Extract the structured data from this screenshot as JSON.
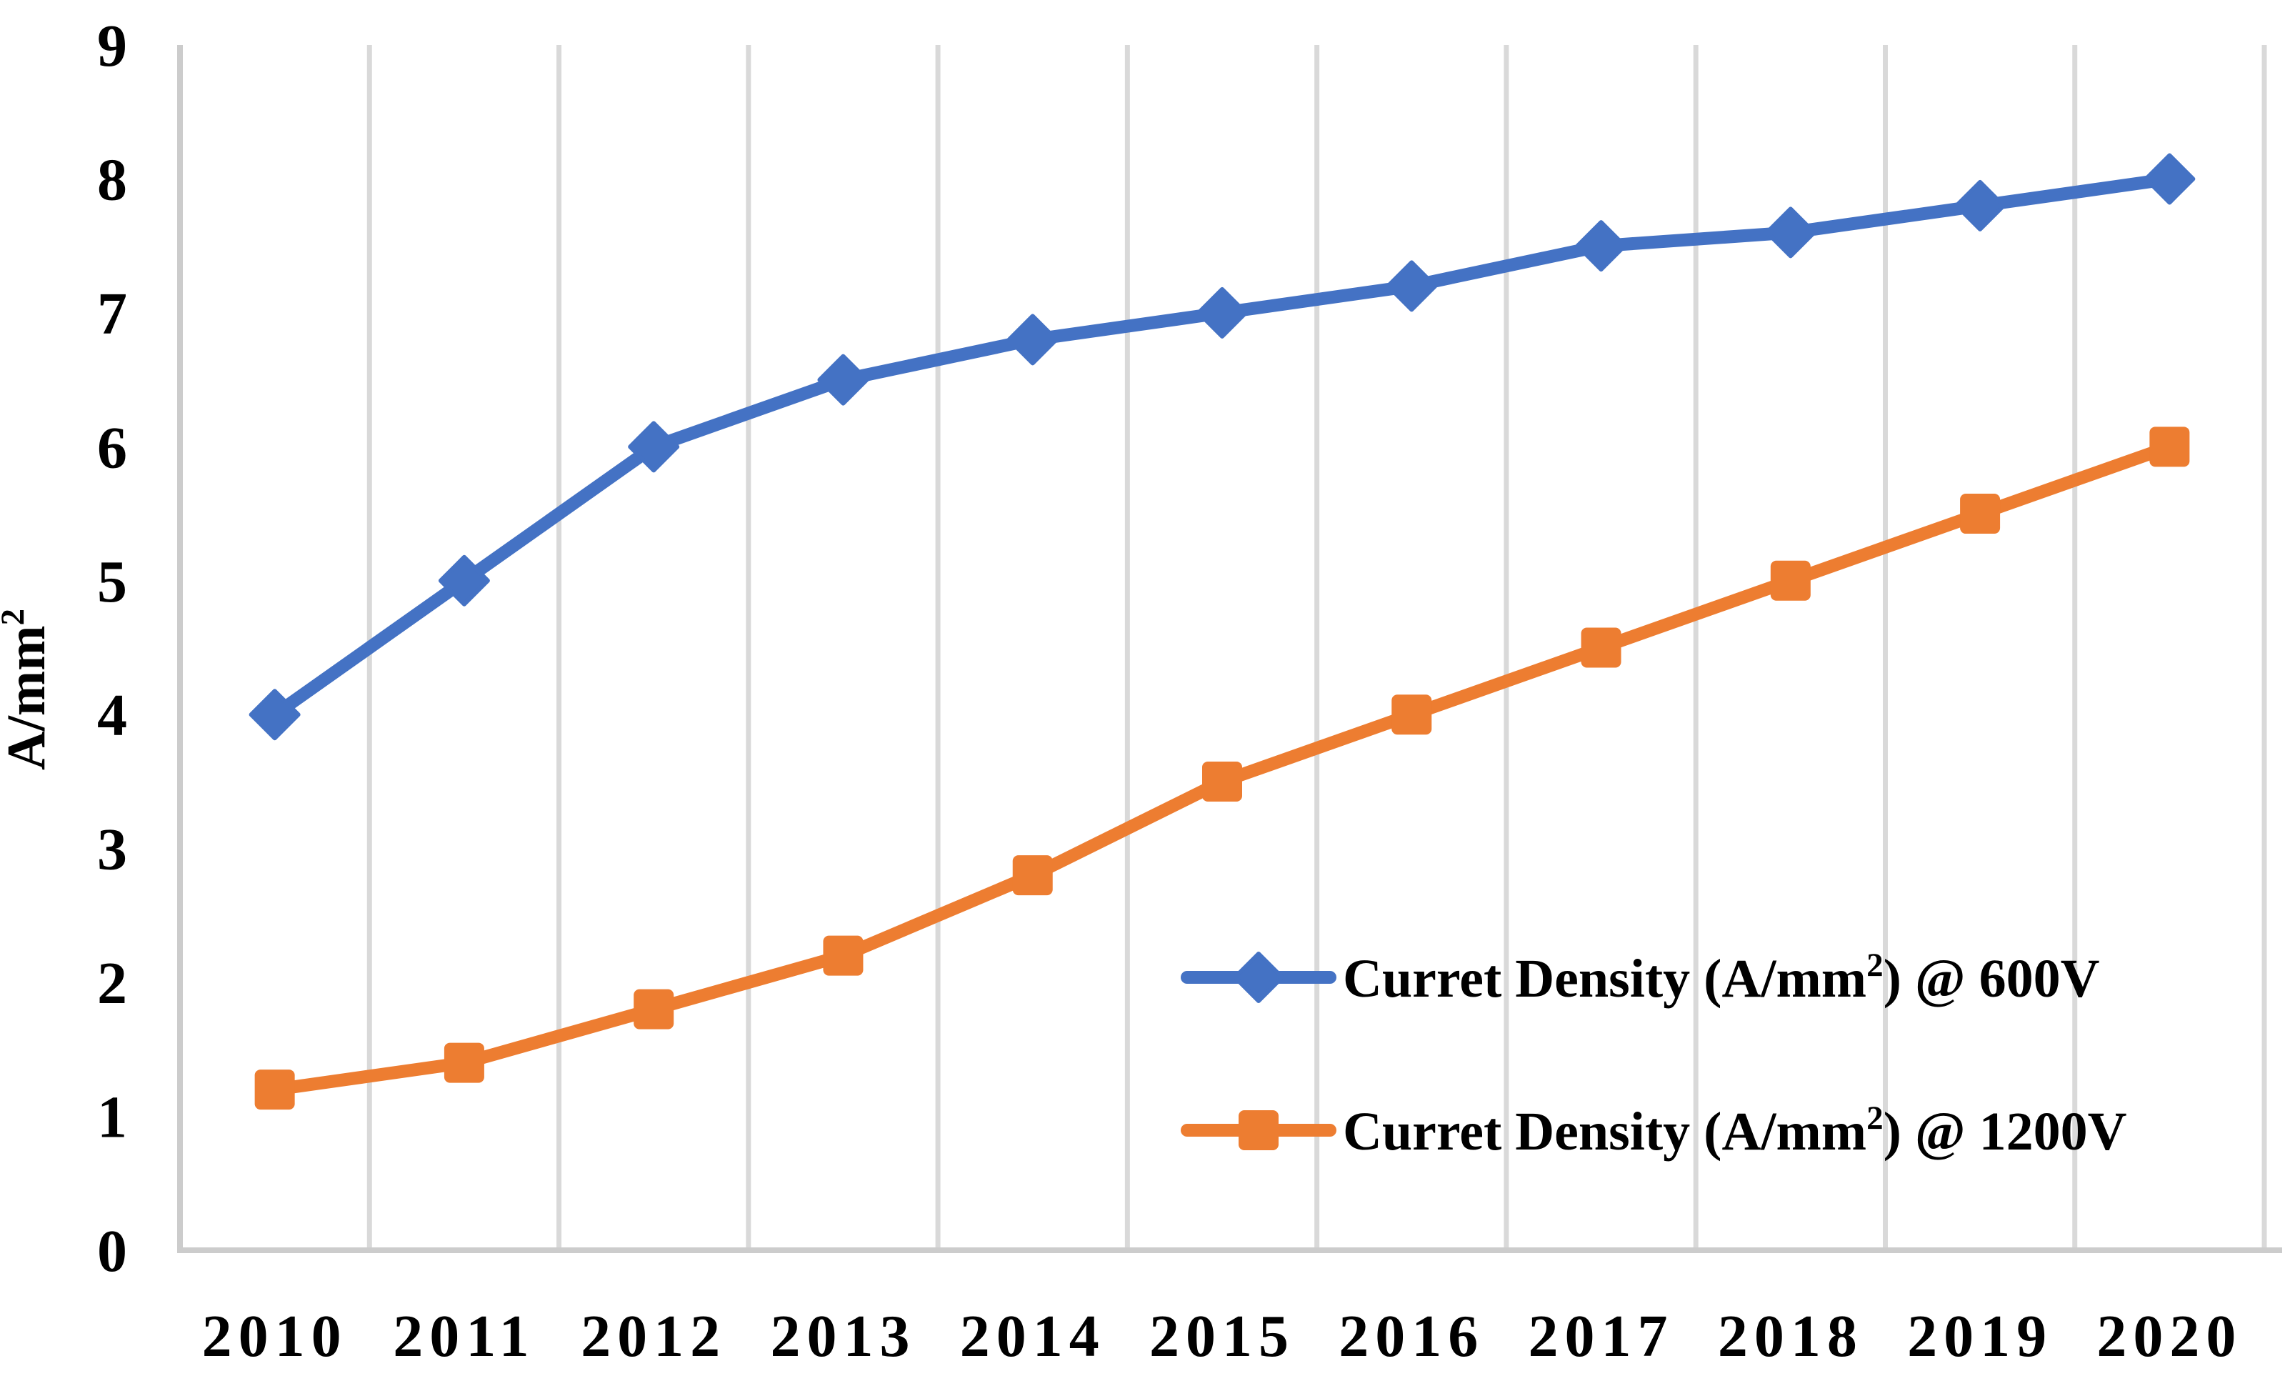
{
  "chart_data": {
    "type": "line",
    "title": "",
    "xlabel": "",
    "ylabel": "A/mm²",
    "x": [
      "2010",
      "2011",
      "2012",
      "2013",
      "2014",
      "2015",
      "2016",
      "2017",
      "2018",
      "2019",
      "2020"
    ],
    "y_ticks": [
      "0",
      "1",
      "2",
      "3",
      "4",
      "5",
      "6",
      "7",
      "8",
      "9"
    ],
    "ylim": [
      0,
      9
    ],
    "grid": "vertical-only",
    "legend_position": "inside-lower-right",
    "series": [
      {
        "name": "Curret Density (A/mm²) @ 600V",
        "marker": "diamond",
        "color": "#4472C4",
        "values": [
          4.0,
          5.0,
          6.0,
          6.5,
          6.8,
          7.0,
          7.2,
          7.5,
          7.6,
          7.8,
          8.0
        ]
      },
      {
        "name": "Curret Density (A/mm²) @ 1200V",
        "marker": "square",
        "color": "#ED7D31",
        "values": [
          1.2,
          1.4,
          1.8,
          2.2,
          2.8,
          3.5,
          4.0,
          4.5,
          5.0,
          5.5,
          6.0
        ]
      }
    ]
  },
  "colors": {
    "background": "#FFFFFF",
    "gridline": "#D9D9D9",
    "axis": "#CCCCCC",
    "text": "#000000",
    "series_600v": "#4472C4",
    "series_1200v": "#ED7D31"
  }
}
